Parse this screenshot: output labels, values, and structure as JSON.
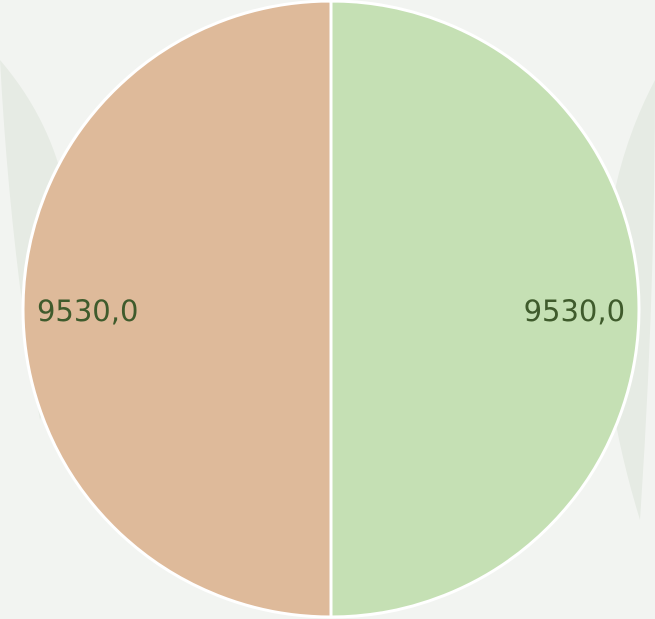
{
  "chart_data": {
    "type": "pie",
    "series": [
      {
        "name": null,
        "values": [
          9530,
          9530
        ],
        "value_labels": [
          "9530,0",
          "9530,0"
        ],
        "colors": [
          "#c5e0b4",
          "#deba9a"
        ]
      }
    ]
  }
}
